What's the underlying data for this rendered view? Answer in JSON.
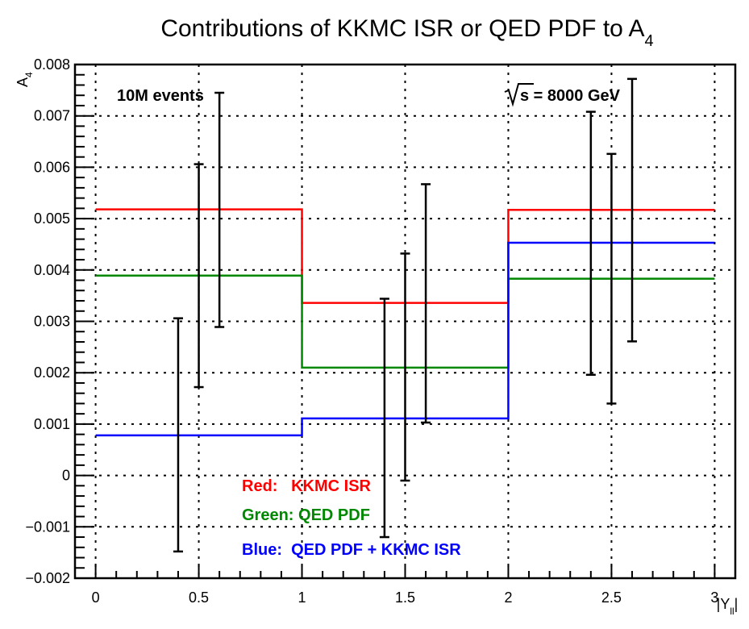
{
  "chart_data": {
    "type": "line",
    "title": "Contributions of KKMC ISR or QED PDF to A",
    "title_sub": "4",
    "xlabel": "|Y",
    "xlabel_sub": "ll",
    "ylabel": "A",
    "ylabel_sub": "4",
    "xlim": [
      -0.1,
      3.1
    ],
    "ylim": [
      -0.002,
      0.008
    ],
    "x_ticks": [
      {
        "v": 0,
        "label": "0"
      },
      {
        "v": 0.5,
        "label": "0.5"
      },
      {
        "v": 1,
        "label": "1"
      },
      {
        "v": 1.5,
        "label": "1.5"
      },
      {
        "v": 2,
        "label": "2"
      },
      {
        "v": 2.5,
        "label": "2.5"
      },
      {
        "v": 3,
        "label": "3"
      }
    ],
    "y_ticks": [
      {
        "v": -0.002,
        "label": "−0.002"
      },
      {
        "v": -0.001,
        "label": "−0.001"
      },
      {
        "v": 0,
        "label": "0"
      },
      {
        "v": 0.001,
        "label": "0.001"
      },
      {
        "v": 0.002,
        "label": "0.002"
      },
      {
        "v": 0.003,
        "label": "0.003"
      },
      {
        "v": 0.004,
        "label": "0.004"
      },
      {
        "v": 0.005,
        "label": "0.005"
      },
      {
        "v": 0.006,
        "label": "0.006"
      },
      {
        "v": 0.007,
        "label": "0.007"
      },
      {
        "v": 0.008,
        "label": "0.008"
      }
    ],
    "grid": true,
    "bin_edges": [
      0,
      1,
      2,
      3
    ],
    "series": [
      {
        "color": "#ff0000",
        "values": [
          0.00518,
          0.00336,
          0.00517
        ]
      },
      {
        "color": "#008800",
        "values": [
          0.00389,
          0.0021,
          0.00383
        ]
      },
      {
        "color": "#0000ff",
        "values": [
          0.00078,
          0.00111,
          0.00453
        ]
      }
    ],
    "error_bars": [
      {
        "x": 0.4,
        "low": -0.00148,
        "high": 0.00306
      },
      {
        "x": 0.5,
        "low": 0.00172,
        "high": 0.00606
      },
      {
        "x": 0.6,
        "low": 0.00289,
        "high": 0.00745
      },
      {
        "x": 1.4,
        "low": -0.0012,
        "high": 0.00344
      },
      {
        "x": 1.5,
        "low": -0.0001,
        "high": 0.00432
      },
      {
        "x": 1.6,
        "low": 0.00103,
        "high": 0.00567
      },
      {
        "x": 2.4,
        "low": 0.00196,
        "high": 0.00708
      },
      {
        "x": 2.5,
        "low": 0.0014,
        "high": 0.00626
      },
      {
        "x": 2.6,
        "low": 0.00261,
        "high": 0.00772
      }
    ],
    "annotations": {
      "events": "10M events",
      "energy": "s = 8000 GeV",
      "legend_red": "Red:   KKMC ISR",
      "legend_green": "Green: QED PDF",
      "legend_blue": "Blue:  QED PDF + KKMC ISR"
    }
  }
}
